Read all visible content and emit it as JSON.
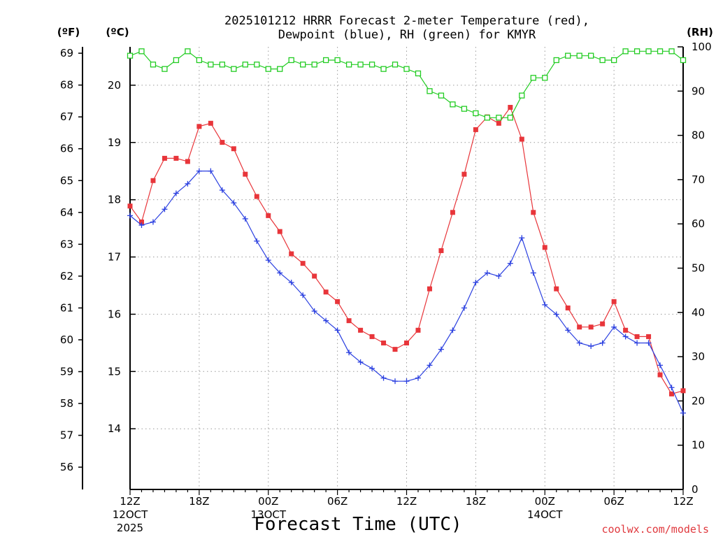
{
  "chart_data": {
    "type": "line",
    "title_line1": "2025101212 HRRR Forecast 2-meter Temperature (red),",
    "title_line2": "Dewpoint (blue), RH (green) for KMYR",
    "xlabel": "Forecast Time (UTC)",
    "credit": "coolwx.com/models",
    "units": {
      "f": "(ºF)",
      "c": "(ºC)",
      "rh": "(RH)"
    },
    "xlim": [
      0,
      48
    ],
    "ylim_f": [
      55.3,
      69.2
    ],
    "ylim_c": [
      12.94,
      20.67
    ],
    "ylim_rh": [
      0,
      100
    ],
    "f_ticks": [
      "56",
      "57",
      "58",
      "59",
      "60",
      "61",
      "62",
      "63",
      "64",
      "65",
      "66",
      "67",
      "68",
      "69"
    ],
    "c_ticks": [
      "14",
      "15",
      "16",
      "17",
      "18",
      "19",
      "20"
    ],
    "rh_ticks": [
      "0",
      "10",
      "20",
      "30",
      "40",
      "50",
      "60",
      "70",
      "80",
      "90",
      "100"
    ],
    "x_ticks": [
      {
        "x": 0,
        "label": "12Z",
        "sub1": "12OCT",
        "sub2": "2025"
      },
      {
        "x": 6,
        "label": "18Z",
        "sub1": "",
        "sub2": ""
      },
      {
        "x": 12,
        "label": "00Z",
        "sub1": "13OCT",
        "sub2": ""
      },
      {
        "x": 18,
        "label": "06Z",
        "sub1": "",
        "sub2": ""
      },
      {
        "x": 24,
        "label": "12Z",
        "sub1": "",
        "sub2": ""
      },
      {
        "x": 30,
        "label": "18Z",
        "sub1": "",
        "sub2": ""
      },
      {
        "x": 36,
        "label": "00Z",
        "sub1": "14OCT",
        "sub2": ""
      },
      {
        "x": 42,
        "label": "06Z",
        "sub1": "",
        "sub2": ""
      },
      {
        "x": 48,
        "label": "12Z",
        "sub1": "",
        "sub2": ""
      }
    ],
    "colors": {
      "temperature": "#e8353a",
      "dewpoint": "#2a3fe0",
      "rh": "#22cc22"
    },
    "series": [
      {
        "name": "Temperature (red)",
        "axis": "f",
        "marker": "square",
        "values": [
          64.2,
          63.7,
          65.0,
          65.7,
          65.7,
          65.6,
          66.7,
          66.8,
          66.2,
          66.0,
          65.2,
          64.5,
          63.9,
          63.4,
          62.7,
          62.4,
          62.0,
          61.5,
          61.2,
          60.6,
          60.3,
          60.1,
          59.9,
          59.7,
          59.9,
          60.3,
          61.6,
          62.8,
          64.0,
          65.2,
          66.6,
          67.0,
          66.8,
          67.3,
          66.3,
          64.0,
          62.9,
          61.6,
          61.0,
          60.4,
          60.4,
          60.5,
          61.2,
          60.3,
          60.1,
          60.1,
          58.9,
          58.3,
          58.4
        ]
      },
      {
        "name": "Dewpoint (blue)",
        "axis": "f",
        "marker": "plus",
        "values": [
          63.9,
          63.6,
          63.7,
          64.1,
          64.6,
          64.9,
          65.3,
          65.3,
          64.7,
          64.3,
          63.8,
          63.1,
          62.5,
          62.1,
          61.8,
          61.4,
          60.9,
          60.6,
          60.3,
          59.6,
          59.3,
          59.1,
          58.8,
          58.7,
          58.7,
          58.8,
          59.2,
          59.7,
          60.3,
          61.0,
          61.8,
          62.1,
          62.0,
          62.4,
          63.2,
          62.1,
          61.1,
          60.8,
          60.3,
          59.9,
          59.8,
          59.9,
          60.4,
          60.1,
          59.9,
          59.9,
          59.2,
          58.5,
          57.7
        ]
      },
      {
        "name": "RH (green)",
        "axis": "rh",
        "marker": "open-square",
        "values": [
          98,
          99,
          96,
          95,
          97,
          99,
          97,
          96,
          96,
          95,
          96,
          96,
          95,
          95,
          97,
          96,
          96,
          97,
          97,
          96,
          96,
          96,
          95,
          96,
          95,
          94,
          90,
          89,
          87,
          86,
          85,
          84,
          84,
          84,
          89,
          93,
          93,
          97,
          98,
          98,
          98,
          97,
          97,
          99,
          99,
          99,
          99,
          99,
          97
        ]
      }
    ]
  }
}
